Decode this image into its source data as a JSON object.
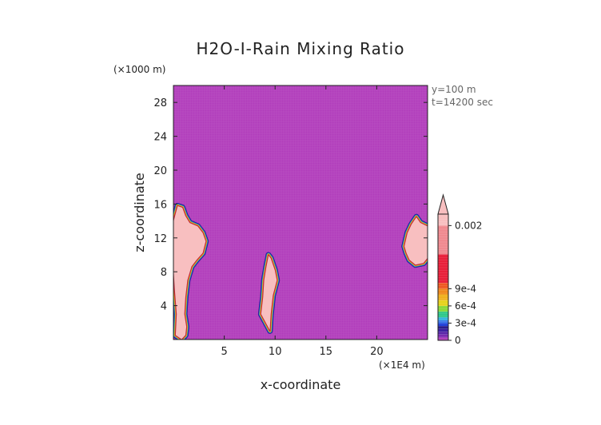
{
  "chart_data": {
    "type": "heatmap",
    "title": "H2O-I-Rain Mixing Ratio",
    "xlabel": "x-coordinate",
    "ylabel": "z-coordinate",
    "x_unit": "(×1E4 m)",
    "y_unit": "(×1000 m)",
    "xlim": [
      0,
      25
    ],
    "ylim": [
      0,
      30
    ],
    "x_ticks": [
      "5",
      "10",
      "15",
      "20"
    ],
    "x_tick_values": [
      5,
      10,
      15,
      20
    ],
    "y_ticks": [
      "4",
      "8",
      "12",
      "16",
      "20",
      "24",
      "28"
    ],
    "y_tick_values": [
      4,
      8,
      12,
      16,
      20,
      24,
      28
    ],
    "info_lines": [
      "y=100 m",
      "t=14200 sec"
    ],
    "background_value": 0,
    "colors": {
      "background": "#b13dbb",
      "grid": "#c46bcc",
      "core": "#f8bfc0",
      "edge_red": "#e8203a",
      "edge_orange": "#f08a1e",
      "edge_yellow": "#e6d21c",
      "edge_green": "#2fc88a",
      "edge_blue": "#2040d8",
      "edge_navy": "#2a1c8c"
    },
    "colorbar": {
      "labels": [
        "0.002",
        "9e-4",
        "6e-4",
        "3e-4",
        "0"
      ],
      "label_values": [
        0.002,
        0.0009,
        0.0006,
        0.0003,
        0
      ],
      "bands": [
        {
          "color": "#b13dbb",
          "from": 0.0,
          "to": 5e-05
        },
        {
          "color": "#7a2bb0",
          "from": 5e-05,
          "to": 0.0001
        },
        {
          "color": "#5a24a8",
          "from": 0.0001,
          "to": 0.00015
        },
        {
          "color": "#3a1fa0",
          "from": 0.00015,
          "to": 0.0002
        },
        {
          "color": "#2a1c8c",
          "from": 0.0002,
          "to": 0.00025
        },
        {
          "color": "#2040d8",
          "from": 0.00025,
          "to": 0.0003
        },
        {
          "color": "#3a78e8",
          "from": 0.0003,
          "to": 0.00035
        },
        {
          "color": "#2fb0e0",
          "from": 0.00035,
          "to": 0.0004
        },
        {
          "color": "#2fc88a",
          "from": 0.0004,
          "to": 0.0005
        },
        {
          "color": "#8ad83a",
          "from": 0.0005,
          "to": 0.0006
        },
        {
          "color": "#e6d21c",
          "from": 0.0006,
          "to": 0.0007
        },
        {
          "color": "#f0b01e",
          "from": 0.0007,
          "to": 0.0008
        },
        {
          "color": "#f08a1e",
          "from": 0.0008,
          "to": 0.0009
        },
        {
          "color": "#ee5a22",
          "from": 0.0009,
          "to": 0.001
        },
        {
          "color": "#e8203a",
          "from": 0.001,
          "to": 0.0015
        },
        {
          "color": "#f08a90",
          "from": 0.0015,
          "to": 0.002
        },
        {
          "color": "#f8bfc0",
          "from": 0.002,
          "to": 0.0022
        }
      ]
    },
    "features": [
      {
        "name": "left-cell",
        "outline": [
          [
            0.2,
            0.5
          ],
          [
            0.3,
            3
          ],
          [
            0.1,
            6
          ],
          [
            0,
            8
          ],
          [
            0,
            14
          ],
          [
            0.4,
            15.8
          ],
          [
            0.9,
            15.6
          ],
          [
            1.2,
            14.6
          ],
          [
            1.6,
            13.8
          ],
          [
            2.4,
            13.4
          ],
          [
            2.9,
            12.6
          ],
          [
            3.2,
            11.6
          ],
          [
            2.9,
            10.2
          ],
          [
            2.3,
            9.4
          ],
          [
            1.8,
            8.6
          ],
          [
            1.4,
            7
          ],
          [
            1.2,
            5
          ],
          [
            1.1,
            3
          ],
          [
            1.3,
            1.5
          ],
          [
            1.2,
            0.5
          ],
          [
            0.8,
            0
          ]
        ]
      },
      {
        "name": "center-cell",
        "outline": [
          [
            8.6,
            3
          ],
          [
            8.8,
            5
          ],
          [
            8.9,
            7
          ],
          [
            9.1,
            8.5
          ],
          [
            9.35,
            10
          ],
          [
            9.6,
            9.6
          ],
          [
            10,
            8.2
          ],
          [
            10.2,
            7
          ],
          [
            9.8,
            5.2
          ],
          [
            9.6,
            3
          ],
          [
            9.5,
            1
          ]
        ]
      },
      {
        "name": "right-cell",
        "outline": [
          [
            22.7,
            11
          ],
          [
            23,
            12.6
          ],
          [
            23.4,
            13.6
          ],
          [
            23.9,
            14.5
          ],
          [
            24.3,
            13.8
          ],
          [
            25,
            13.4
          ],
          [
            25,
            9.6
          ],
          [
            24.6,
            9
          ],
          [
            23.8,
            8.8
          ],
          [
            23.2,
            9.4
          ],
          [
            22.9,
            10.2
          ]
        ]
      }
    ]
  }
}
